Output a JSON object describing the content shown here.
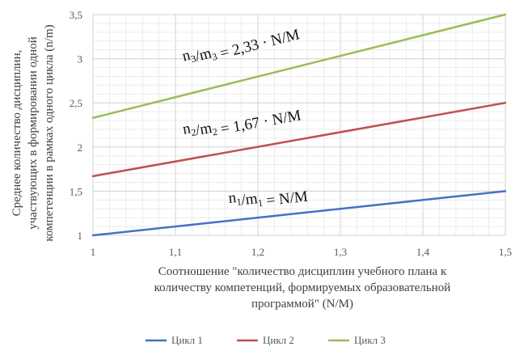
{
  "chart_data": {
    "type": "line",
    "x": [
      1,
      1.5
    ],
    "series": [
      {
        "name": "Цикл 1",
        "values": [
          1,
          1.5
        ],
        "color": "#4472C4"
      },
      {
        "name": "Цикл 2",
        "values": [
          1.67,
          2.5
        ],
        "color": "#C0504D"
      },
      {
        "name": "Цикл 3",
        "values": [
          2.33,
          3.5
        ],
        "color": "#9BBB59"
      }
    ],
    "xlim": [
      1,
      1.5
    ],
    "ylim": [
      1,
      3.5
    ],
    "xticks": [
      "1",
      "1,1",
      "1,2",
      "1,3",
      "1,4",
      "1,5"
    ],
    "yticks": [
      "1",
      "1,5",
      "2",
      "2,5",
      "3",
      "3,5"
    ],
    "xlabel_lines": [
      "Соотношение \"количество дисциплин учебного плана к",
      "количеству компетенций, формируемых образовательной",
      "программой\" (N/M)"
    ],
    "ylabel_lines": [
      "Среднее количество дисциплин,",
      "участвующих в формировании одной",
      "компетенции в рамках одного цикла (n/m)"
    ],
    "annotations": [
      {
        "series": 2,
        "n": "n",
        "nsub": "3",
        "m": "m",
        "msub": "3",
        "rest": " = 2,33 · N/M"
      },
      {
        "series": 1,
        "n": "n",
        "nsub": "2",
        "m": "m",
        "msub": "2",
        "rest": " = 1,67 · N/M"
      },
      {
        "series": 0,
        "n": "n",
        "nsub": "1",
        "m": "m",
        "msub": "1",
        "rest": " = N/M"
      }
    ],
    "grid": true,
    "legend_position": "bottom"
  }
}
